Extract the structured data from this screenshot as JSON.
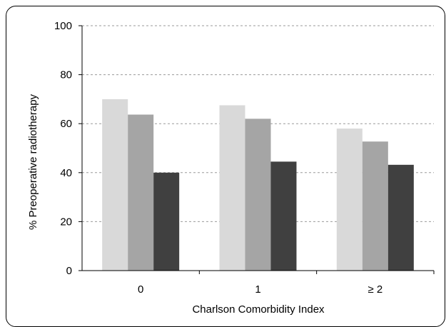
{
  "chart_data": {
    "type": "bar",
    "title": "",
    "xlabel": "Charlson Comorbidity Index",
    "ylabel": "% Preoperative radiotherapy",
    "categories": [
      "0",
      "1",
      "≥ 2"
    ],
    "ylim": [
      0,
      100
    ],
    "yticks": [
      0,
      20,
      40,
      60,
      80,
      100
    ],
    "grid": true,
    "series": [
      {
        "values": [
          70,
          67.5,
          58
        ],
        "color": "#d9d9d9"
      },
      {
        "values": [
          63.7,
          62,
          52.7
        ],
        "color": "#a5a5a5"
      },
      {
        "values": [
          40,
          44.5,
          43.2
        ],
        "color": "#404040"
      }
    ]
  }
}
